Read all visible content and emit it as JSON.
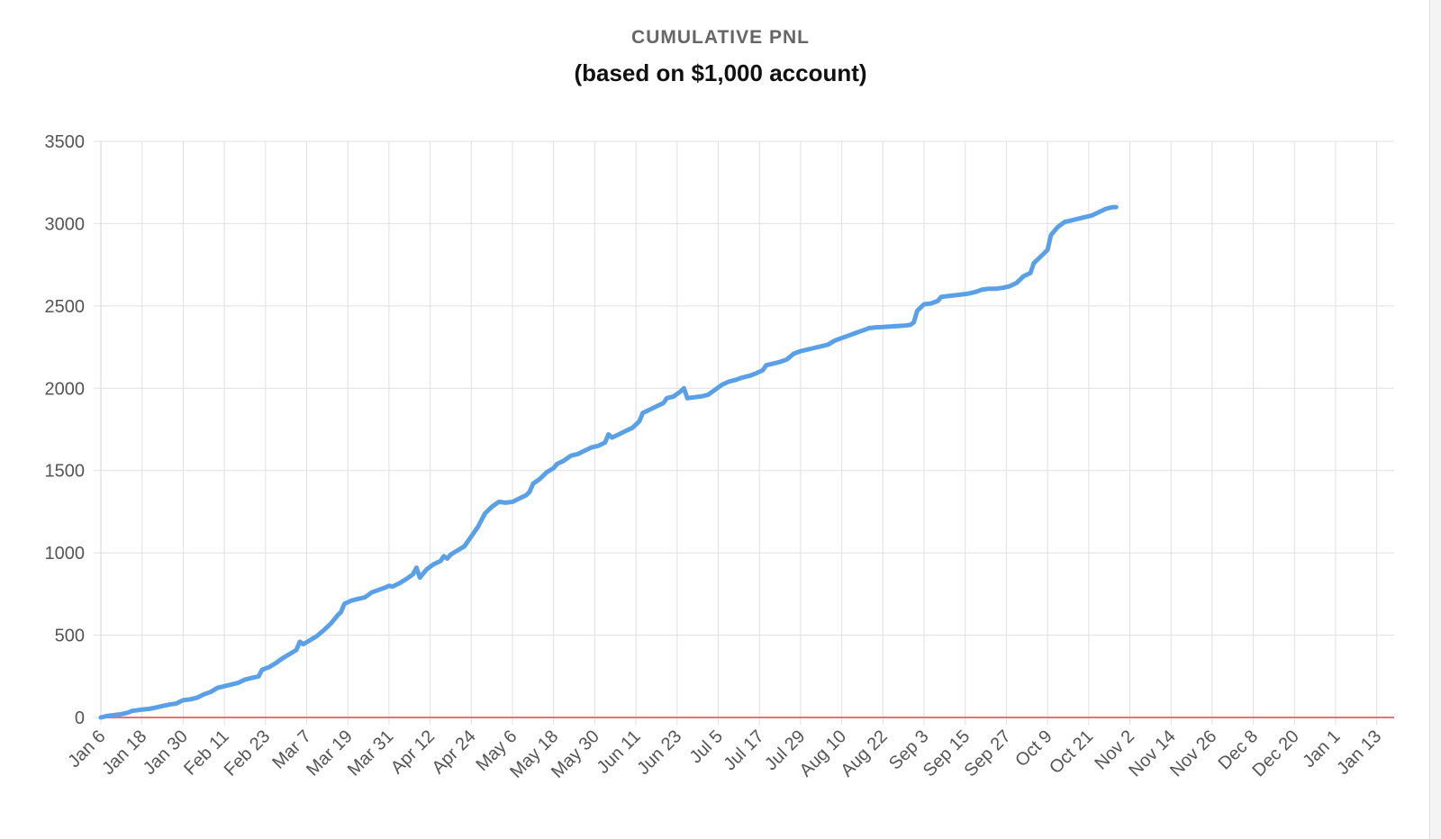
{
  "chart_data": {
    "type": "line",
    "title": "CUMULATIVE PNL",
    "subtitle": "(based on $1,000 account)",
    "xlabel": "",
    "ylabel": "",
    "ylim": [
      0,
      3500
    ],
    "yticks": [
      0,
      500,
      1000,
      1500,
      2000,
      2500,
      3000,
      3500
    ],
    "grid": true,
    "legend": "none",
    "x_categories": [
      "Jan 6",
      "Jan 18",
      "Jan 30",
      "Feb 11",
      "Feb 23",
      "Mar 7",
      "Mar 19",
      "Mar 31",
      "Apr 12",
      "Apr 24",
      "May 6",
      "May 18",
      "May 30",
      "Jun 11",
      "Jun 23",
      "Jul 5",
      "Jul 17",
      "Jul 29",
      "Aug 10",
      "Aug 22",
      "Sep 3",
      "Sep 15",
      "Sep 27",
      "Oct 9",
      "Oct 21",
      "Nov 2",
      "Nov 14",
      "Nov 26",
      "Dec 8",
      "Dec 20",
      "Jan 1",
      "Jan 13"
    ],
    "series": [
      {
        "color": "#5aa0e6",
        "points": [
          [
            0,
            0
          ],
          [
            2,
            10
          ],
          [
            4,
            15
          ],
          [
            6,
            20
          ],
          [
            8,
            30
          ],
          [
            9,
            40
          ],
          [
            10,
            42
          ],
          [
            12,
            48
          ],
          [
            14,
            52
          ],
          [
            16,
            60
          ],
          [
            18,
            70
          ],
          [
            20,
            78
          ],
          [
            22,
            85
          ],
          [
            24,
            105
          ],
          [
            26,
            110
          ],
          [
            28,
            120
          ],
          [
            30,
            140
          ],
          [
            32,
            155
          ],
          [
            34,
            180
          ],
          [
            36,
            190
          ],
          [
            38,
            200
          ],
          [
            40,
            210
          ],
          [
            42,
            230
          ],
          [
            44,
            240
          ],
          [
            46,
            250
          ],
          [
            47,
            290
          ],
          [
            49,
            305
          ],
          [
            51,
            330
          ],
          [
            53,
            360
          ],
          [
            55,
            385
          ],
          [
            57,
            410
          ],
          [
            58,
            460
          ],
          [
            59,
            445
          ],
          [
            61,
            470
          ],
          [
            63,
            495
          ],
          [
            65,
            530
          ],
          [
            67,
            570
          ],
          [
            69,
            620
          ],
          [
            70,
            640
          ],
          [
            71,
            690
          ],
          [
            73,
            710
          ],
          [
            75,
            720
          ],
          [
            77,
            730
          ],
          [
            79,
            760
          ],
          [
            81,
            775
          ],
          [
            83,
            790
          ],
          [
            84,
            800
          ],
          [
            85,
            795
          ],
          [
            87,
            815
          ],
          [
            89,
            840
          ],
          [
            91,
            870
          ],
          [
            92,
            910
          ],
          [
            93,
            850
          ],
          [
            95,
            900
          ],
          [
            97,
            930
          ],
          [
            99,
            950
          ],
          [
            100,
            980
          ],
          [
            101,
            965
          ],
          [
            102,
            990
          ],
          [
            104,
            1015
          ],
          [
            106,
            1040
          ],
          [
            107,
            1070
          ],
          [
            109,
            1130
          ],
          [
            110,
            1160
          ],
          [
            112,
            1240
          ],
          [
            114,
            1280
          ],
          [
            116,
            1310
          ],
          [
            118,
            1305
          ],
          [
            120,
            1310
          ],
          [
            122,
            1330
          ],
          [
            124,
            1350
          ],
          [
            125,
            1370
          ],
          [
            126,
            1420
          ],
          [
            128,
            1450
          ],
          [
            130,
            1490
          ],
          [
            132,
            1515
          ],
          [
            133,
            1540
          ],
          [
            135,
            1560
          ],
          [
            137,
            1590
          ],
          [
            139,
            1600
          ],
          [
            141,
            1620
          ],
          [
            143,
            1640
          ],
          [
            145,
            1650
          ],
          [
            147,
            1670
          ],
          [
            148,
            1720
          ],
          [
            149,
            1700
          ],
          [
            151,
            1720
          ],
          [
            153,
            1740
          ],
          [
            155,
            1760
          ],
          [
            157,
            1800
          ],
          [
            158,
            1850
          ],
          [
            160,
            1870
          ],
          [
            162,
            1890
          ],
          [
            164,
            1910
          ],
          [
            165,
            1940
          ],
          [
            167,
            1950
          ],
          [
            169,
            1980
          ],
          [
            170,
            2000
          ],
          [
            171,
            1940
          ],
          [
            173,
            1945
          ],
          [
            175,
            1950
          ],
          [
            177,
            1960
          ],
          [
            179,
            1990
          ],
          [
            181,
            2020
          ],
          [
            183,
            2040
          ],
          [
            185,
            2050
          ],
          [
            187,
            2065
          ],
          [
            189,
            2075
          ],
          [
            191,
            2090
          ],
          [
            193,
            2110
          ],
          [
            194,
            2140
          ],
          [
            196,
            2150
          ],
          [
            198,
            2160
          ],
          [
            200,
            2175
          ],
          [
            202,
            2210
          ],
          [
            204,
            2225
          ],
          [
            206,
            2235
          ],
          [
            208,
            2245
          ],
          [
            210,
            2255
          ],
          [
            212,
            2265
          ],
          [
            214,
            2290
          ],
          [
            216,
            2305
          ],
          [
            218,
            2320
          ],
          [
            220,
            2335
          ],
          [
            222,
            2350
          ],
          [
            224,
            2365
          ],
          [
            226,
            2370
          ],
          [
            228,
            2372
          ],
          [
            230,
            2375
          ],
          [
            232,
            2378
          ],
          [
            234,
            2380
          ],
          [
            236,
            2385
          ],
          [
            237,
            2400
          ],
          [
            238,
            2470
          ],
          [
            240,
            2510
          ],
          [
            242,
            2515
          ],
          [
            244,
            2530
          ],
          [
            245,
            2555
          ],
          [
            247,
            2560
          ],
          [
            249,
            2565
          ],
          [
            251,
            2570
          ],
          [
            253,
            2575
          ],
          [
            255,
            2585
          ],
          [
            257,
            2600
          ],
          [
            259,
            2605
          ],
          [
            261,
            2605
          ],
          [
            263,
            2610
          ],
          [
            265,
            2620
          ],
          [
            267,
            2640
          ],
          [
            269,
            2680
          ],
          [
            271,
            2700
          ],
          [
            272,
            2760
          ],
          [
            274,
            2800
          ],
          [
            276,
            2840
          ],
          [
            277,
            2930
          ],
          [
            279,
            2980
          ],
          [
            281,
            3010
          ],
          [
            283,
            3020
          ],
          [
            285,
            3030
          ],
          [
            287,
            3040
          ],
          [
            289,
            3050
          ],
          [
            291,
            3070
          ],
          [
            293,
            3090
          ],
          [
            295,
            3100
          ],
          [
            296,
            3100
          ]
        ]
      }
    ],
    "baseline": {
      "value": 0,
      "color": "#e57373"
    }
  }
}
